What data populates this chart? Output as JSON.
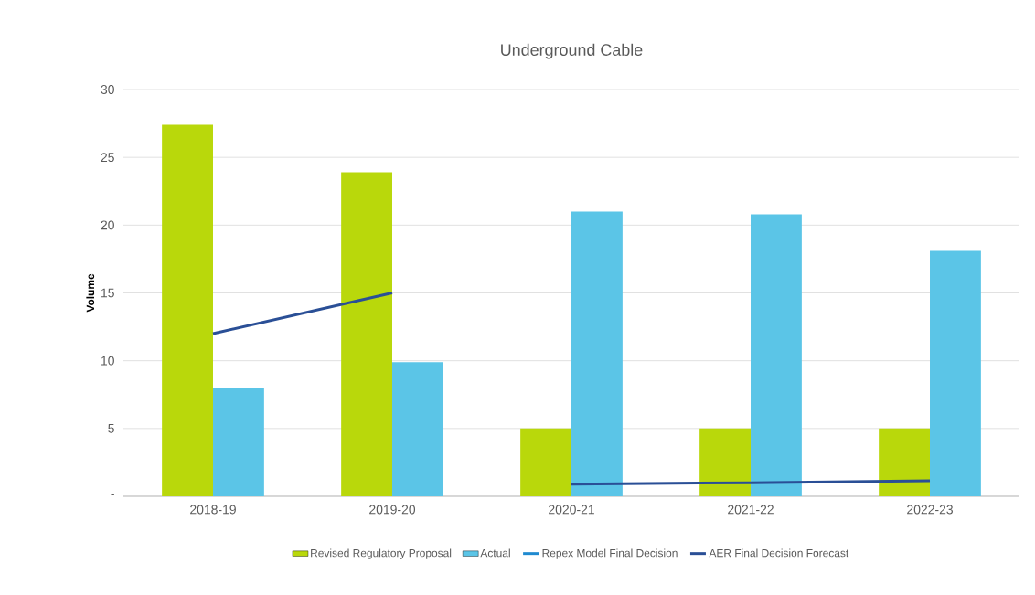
{
  "chart_data": {
    "type": "bar",
    "title": "Underground Cable",
    "ylabel": "Volume",
    "categories": [
      "2018-19",
      "2019-20",
      "2020-21",
      "2021-22",
      "2022-23"
    ],
    "series": [
      {
        "name": "Revised Regulatory Proposal",
        "color": "#b9d80b",
        "values": [
          27.4,
          23.9,
          5,
          5,
          5
        ]
      },
      {
        "name": "Actual",
        "color": "#5bc5e7",
        "values": [
          8,
          9.9,
          21,
          20.8,
          18.1
        ]
      },
      {
        "name": "Repex Model Final Decision",
        "type": "line",
        "color": "#1f8ad0",
        "values": [
          null,
          null,
          null,
          null,
          null
        ]
      },
      {
        "name": "AER Final Decision Forecast",
        "type": "line",
        "color": "#2a4f96",
        "values": [
          12,
          15,
          null,
          null,
          null
        ]
      },
      {
        "type": "line",
        "color": "#2a4f96",
        "values": [
          null,
          null,
          0.9,
          1,
          1.15
        ]
      }
    ],
    "ylim": [
      0,
      30
    ],
    "yticks": [
      {
        "value": 0,
        "label": "-"
      },
      5,
      10,
      15,
      20,
      25,
      30
    ],
    "grid": "y",
    "legend": "bottom"
  }
}
